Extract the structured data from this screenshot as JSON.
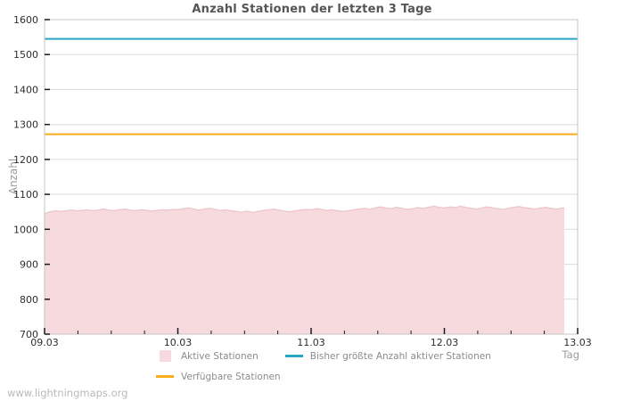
{
  "page": {
    "footer": "www.lightningmaps.org"
  },
  "chart_data": {
    "type": "area",
    "title": "Anzahl Stationen der letzten 3 Tage",
    "xlabel": "Tag",
    "ylabel": "Anzahl",
    "xlim": [
      0,
      4
    ],
    "ylim": [
      700,
      1600
    ],
    "grid": "horizontal",
    "legend_position": "bottom",
    "x_minor_tick_step": 0.25,
    "xticks": [
      {
        "x": 0,
        "label": "09.03"
      },
      {
        "x": 1,
        "label": "10.03"
      },
      {
        "x": 2,
        "label": "11.03"
      },
      {
        "x": 3,
        "label": "12.03"
      },
      {
        "x": 4,
        "label": "13.03"
      }
    ],
    "yticks": [
      700,
      800,
      900,
      1000,
      1100,
      1200,
      1300,
      1400,
      1500,
      1600
    ],
    "colors": {
      "grid": "#dcdcdc",
      "border": "#c6c6c6",
      "tick": "#1a1a1a",
      "tick_label": "#2e2e2e",
      "title": "#555555",
      "axis_label": "#9b9b9b",
      "legend_text": "#8b8b8b",
      "footer": "#b9b9b9"
    },
    "series": [
      {
        "name": "Aktive Stationen",
        "type": "area",
        "fill": "#f7dadd",
        "stroke": "#ecc6cb",
        "points": [
          [
            0.0,
            1045
          ],
          [
            0.04,
            1050
          ],
          [
            0.08,
            1053
          ],
          [
            0.12,
            1051
          ],
          [
            0.16,
            1053
          ],
          [
            0.2,
            1055
          ],
          [
            0.24,
            1053
          ],
          [
            0.28,
            1054
          ],
          [
            0.32,
            1056
          ],
          [
            0.36,
            1053
          ],
          [
            0.4,
            1055
          ],
          [
            0.44,
            1058
          ],
          [
            0.48,
            1055
          ],
          [
            0.52,
            1053
          ],
          [
            0.56,
            1056
          ],
          [
            0.6,
            1058
          ],
          [
            0.64,
            1055
          ],
          [
            0.68,
            1053
          ],
          [
            0.72,
            1056
          ],
          [
            0.76,
            1055
          ],
          [
            0.8,
            1052
          ],
          [
            0.84,
            1054
          ],
          [
            0.88,
            1056
          ],
          [
            0.92,
            1055
          ],
          [
            0.96,
            1057
          ],
          [
            1.0,
            1056
          ],
          [
            1.04,
            1059
          ],
          [
            1.08,
            1061
          ],
          [
            1.12,
            1058
          ],
          [
            1.16,
            1055
          ],
          [
            1.2,
            1058
          ],
          [
            1.24,
            1060
          ],
          [
            1.28,
            1057
          ],
          [
            1.32,
            1054
          ],
          [
            1.36,
            1056
          ],
          [
            1.4,
            1053
          ],
          [
            1.44,
            1051
          ],
          [
            1.48,
            1049
          ],
          [
            1.52,
            1052
          ],
          [
            1.56,
            1048
          ],
          [
            1.6,
            1051
          ],
          [
            1.64,
            1054
          ],
          [
            1.68,
            1056
          ],
          [
            1.72,
            1058
          ],
          [
            1.76,
            1055
          ],
          [
            1.8,
            1052
          ],
          [
            1.84,
            1050
          ],
          [
            1.88,
            1053
          ],
          [
            1.92,
            1055
          ],
          [
            1.96,
            1057
          ],
          [
            2.0,
            1056
          ],
          [
            2.04,
            1059
          ],
          [
            2.08,
            1057
          ],
          [
            2.12,
            1054
          ],
          [
            2.16,
            1056
          ],
          [
            2.2,
            1053
          ],
          [
            2.24,
            1051
          ],
          [
            2.28,
            1053
          ],
          [
            2.32,
            1056
          ],
          [
            2.36,
            1058
          ],
          [
            2.4,
            1060
          ],
          [
            2.44,
            1057
          ],
          [
            2.48,
            1061
          ],
          [
            2.52,
            1064
          ],
          [
            2.56,
            1061
          ],
          [
            2.6,
            1059
          ],
          [
            2.64,
            1063
          ],
          [
            2.68,
            1060
          ],
          [
            2.72,
            1057
          ],
          [
            2.76,
            1059
          ],
          [
            2.8,
            1062
          ],
          [
            2.84,
            1060
          ],
          [
            2.88,
            1063
          ],
          [
            2.92,
            1066
          ],
          [
            2.96,
            1063
          ],
          [
            3.0,
            1061
          ],
          [
            3.04,
            1064
          ],
          [
            3.08,
            1062
          ],
          [
            3.12,
            1066
          ],
          [
            3.16,
            1063
          ],
          [
            3.2,
            1060
          ],
          [
            3.24,
            1058
          ],
          [
            3.28,
            1061
          ],
          [
            3.32,
            1064
          ],
          [
            3.36,
            1062
          ],
          [
            3.4,
            1059
          ],
          [
            3.44,
            1057
          ],
          [
            3.48,
            1060
          ],
          [
            3.52,
            1063
          ],
          [
            3.56,
            1065
          ],
          [
            3.6,
            1062
          ],
          [
            3.64,
            1060
          ],
          [
            3.68,
            1058
          ],
          [
            3.72,
            1061
          ],
          [
            3.76,
            1063
          ],
          [
            3.8,
            1060
          ],
          [
            3.84,
            1058
          ],
          [
            3.88,
            1061
          ],
          [
            3.9,
            1060
          ]
        ]
      },
      {
        "name": "Bisher größte Anzahl aktiver Stationen",
        "type": "hline",
        "color": "#2aa5c7",
        "value": 1545,
        "span": [
          0,
          4
        ]
      },
      {
        "name": "Verfügbare Stationen",
        "type": "hline",
        "color": "#fbac19",
        "value": 1272,
        "span": [
          0,
          4
        ]
      }
    ],
    "legend_rows": [
      [
        0,
        1
      ],
      [
        2
      ]
    ]
  }
}
